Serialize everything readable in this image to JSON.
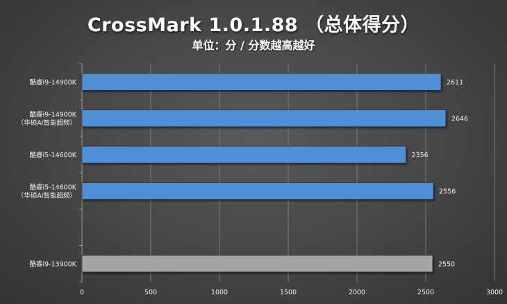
{
  "chart_data": {
    "type": "bar",
    "orientation": "horizontal",
    "title": "CrossMark 1.0.1.88 （总体得分）",
    "subtitle": "单位：分 / 分数越高越好",
    "categories": [
      [
        "酷睿i9-14900K"
      ],
      [
        "酷睿i9-14900K",
        "（华硕AI智能超频）"
      ],
      [
        "酷睿i5-14600K"
      ],
      [
        "酷睿i5-14600K",
        "（华硕AI智能超频）"
      ],
      [],
      [
        "酷睿i9-13900K"
      ]
    ],
    "values": [
      2611,
      2646,
      2356,
      2556,
      null,
      2550
    ],
    "colors": [
      "#4f90d8",
      "#4f90d8",
      "#4f90d8",
      "#4f90d8",
      null,
      "#a5a5a5"
    ],
    "xlim": [
      0,
      3000
    ],
    "xticks": [
      0,
      500,
      1000,
      1500,
      2000,
      2500,
      3000
    ],
    "grid": true,
    "legend": "none"
  }
}
